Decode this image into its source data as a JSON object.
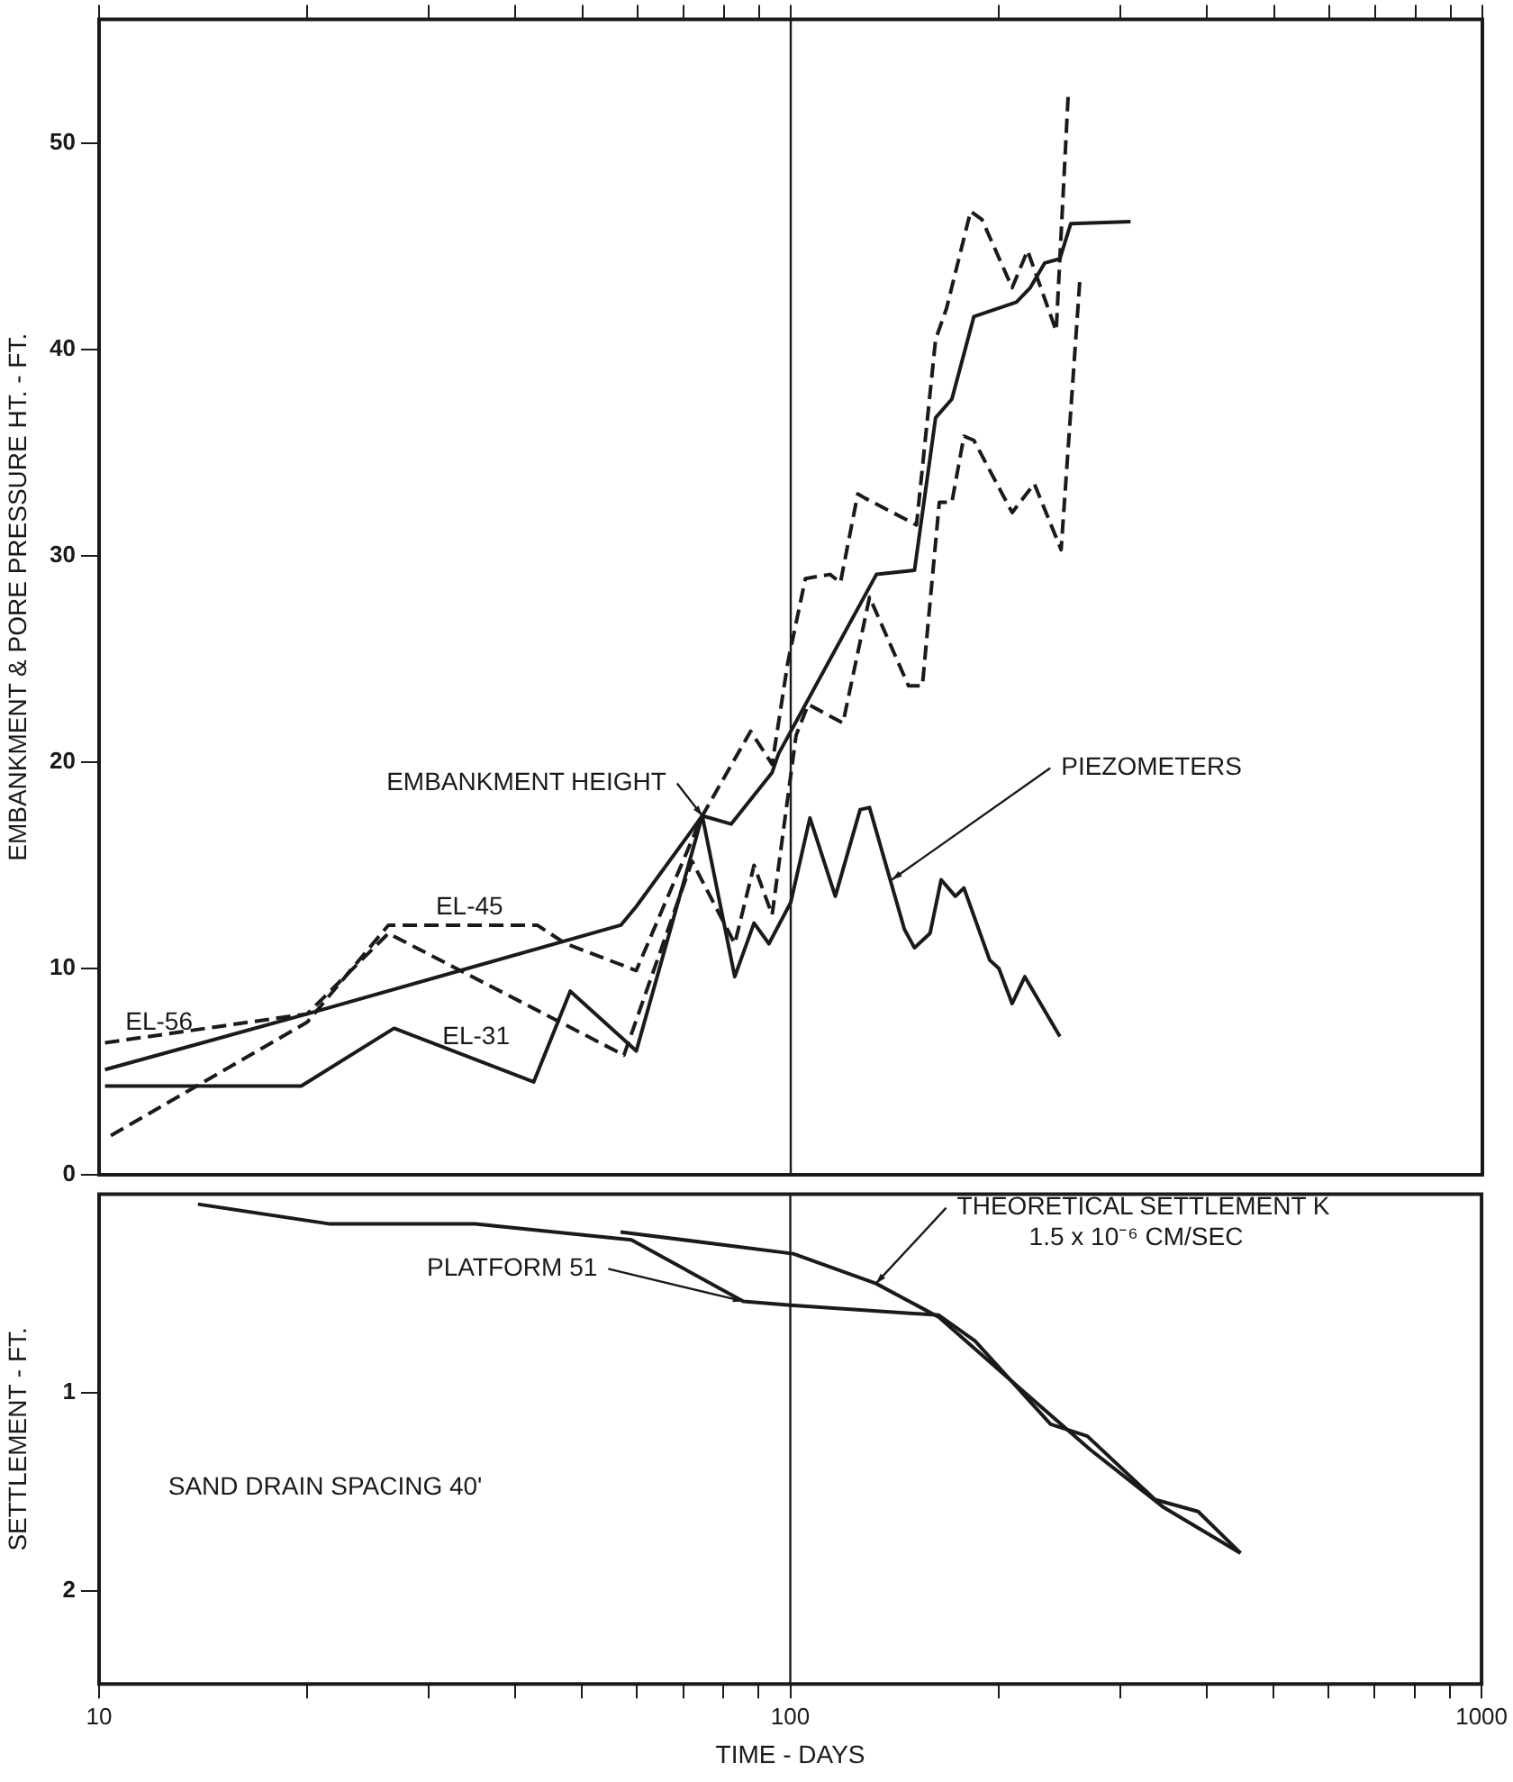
{
  "chart_data": [
    {
      "type": "line",
      "ylabel": "EMBANKMENT & PORE PRESSURE HT. - FT.",
      "log": "x",
      "xlim": [
        10,
        1000
      ],
      "xticks": [
        10,
        {
          "value": 20,
          "label": null
        },
        {
          "value": 30,
          "label": null
        },
        {
          "value": 40,
          "label": null
        },
        {
          "value": 50,
          "label": null
        },
        {
          "value": 60,
          "label": null
        },
        {
          "value": 70,
          "label": null
        },
        {
          "value": 80,
          "label": null
        },
        {
          "value": 90,
          "label": null
        },
        100,
        {
          "value": 200,
          "label": null
        },
        {
          "value": 300,
          "label": null
        },
        {
          "value": 400,
          "label": null
        },
        {
          "value": 500,
          "label": null
        },
        {
          "value": 600,
          "label": null
        },
        {
          "value": 700,
          "label": null
        },
        {
          "value": 800,
          "label": null
        },
        {
          "value": 900,
          "label": null
        },
        1000
      ],
      "ylim": [
        0,
        56
      ],
      "yticks": [
        0,
        10,
        20,
        30,
        40,
        50
      ],
      "tick_labels": "y",
      "grid": false,
      "marker": "none",
      "ref_lines": [
        {
          "axis": "x",
          "value": 100,
          "color": "#1a1a1a"
        }
      ],
      "annotations": [
        {
          "text": "PIEZOMETERS",
          "x": 140,
          "y": 14.3
        }
      ],
      "series": [
        {
          "name": "EMBANKMENT HEIGHT",
          "color": "#1a1a1a",
          "line_style": "solid",
          "x": [
            10.2,
            20,
            56.8,
            59.8,
            74.5,
            82,
            94,
            96,
            133,
            151,
            162,
            171,
            184,
            212,
            222,
            233,
            245,
            254,
            310
          ],
          "values": [
            5.1,
            7.8,
            12.1,
            13,
            17.4,
            17,
            19.5,
            20.4,
            29.1,
            29.3,
            36.7,
            37.6,
            41.6,
            42.3,
            43,
            44.2,
            44.4,
            46.1,
            46.2
          ]
        },
        {
          "name": "EL-56",
          "color": "#1a1a1a",
          "line_style": "dashed",
          "x": [
            10.2,
            20,
            26.2,
            57.4,
            72,
            83,
            88.5,
            94,
            101.8,
            106,
            119,
            130,
            148,
            155,
            164,
            171,
            178,
            184,
            209,
            225,
            246,
            262
          ],
          "values": [
            6.4,
            7.8,
            11.7,
            5.8,
            15.2,
            11.2,
            15,
            12.6,
            21.3,
            22.8,
            21.9,
            28,
            23.7,
            23.7,
            32.6,
            32.6,
            35.8,
            35.6,
            32.1,
            33.5,
            30.3,
            43.5
          ]
        },
        {
          "name": "EL-45",
          "color": "#1a1a1a",
          "line_style": "dashed",
          "x": [
            10.4,
            20,
            26.2,
            43,
            47.3,
            59.8,
            74.5,
            87.5,
            94,
            99,
            105,
            114,
            118,
            125,
            128,
            152,
            162,
            168,
            182,
            189,
            209,
            220,
            242,
            252
          ],
          "values": [
            1.9,
            7.4,
            12.1,
            12.1,
            11.2,
            9.9,
            17.4,
            21.5,
            19.9,
            24.8,
            28.9,
            29.1,
            28.7,
            33,
            32.8,
            31.5,
            40.5,
            42,
            46.7,
            46.3,
            43,
            44.8,
            40.9,
            52.5
          ]
        },
        {
          "name": "EL-31",
          "color": "#1a1a1a",
          "line_style": "solid",
          "x": [
            10.2,
            19.6,
            26.7,
            42.5,
            48,
            59.8,
            74.5,
            83,
            88.5,
            93,
            100,
            106.6,
            116,
            126,
            130,
            146,
            151,
            159,
            165,
            173,
            178,
            194,
            200,
            209,
            218,
            245
          ],
          "values": [
            4.3,
            4.3,
            7.1,
            4.5,
            8.9,
            6,
            17.4,
            9.6,
            12.2,
            11.2,
            13.2,
            17.3,
            13.5,
            17.7,
            17.8,
            11.9,
            11,
            11.7,
            14.3,
            13.5,
            13.9,
            10.4,
            10,
            8.3,
            9.6,
            6.7
          ]
        }
      ]
    },
    {
      "type": "line",
      "xlabel": "TIME - DAYS",
      "ylabel": "SETTLEMENT - FT.",
      "log": "x",
      "xlim": [
        10,
        1000
      ],
      "xticks": [
        10,
        {
          "value": 20,
          "label": null
        },
        {
          "value": 30,
          "label": null
        },
        {
          "value": 40,
          "label": null
        },
        {
          "value": 50,
          "label": null
        },
        {
          "value": 60,
          "label": null
        },
        {
          "value": 70,
          "label": null
        },
        {
          "value": 80,
          "label": null
        },
        {
          "value": 90,
          "label": null
        },
        100,
        {
          "value": 200,
          "label": null
        },
        {
          "value": 300,
          "label": null
        },
        {
          "value": 400,
          "label": null
        },
        {
          "value": 500,
          "label": null
        },
        {
          "value": 600,
          "label": null
        },
        {
          "value": 700,
          "label": null
        },
        {
          "value": 800,
          "label": null
        },
        {
          "value": 900,
          "label": null
        },
        1000
      ],
      "ylim": [
        2.47,
        0
      ],
      "yticks": [
        1,
        2
      ],
      "grid": false,
      "marker": "none",
      "ref_lines": [
        {
          "axis": "x",
          "value": 100,
          "color": "#1a1a1a"
        }
      ],
      "annotations": [
        "SAND DRAIN SPACING 40'"
      ],
      "series": [
        {
          "name": "PLATFORM 51",
          "color": "#1a1a1a",
          "line_style": "solid",
          "x": [
            13.9,
            21.6,
            35,
            58.9,
            85.5,
            100,
            164,
            185,
            238,
            269,
            337,
            389,
            448
          ],
          "values": [
            0.05,
            0.15,
            0.15,
            0.23,
            0.54,
            0.56,
            0.61,
            0.74,
            1.16,
            1.22,
            1.54,
            1.6,
            1.81
          ]
        },
        {
          "name": "THEORETICAL SETTLEMENT K 1.5 x 10⁻⁶ CM/SEC",
          "color": "#1a1a1a",
          "line_style": "solid",
          "x": [
            56.8,
            101,
            133,
            164,
            215,
            272,
            347,
            448
          ],
          "values": [
            0.19,
            0.3,
            0.45,
            0.62,
            0.98,
            1.29,
            1.58,
            1.81
          ]
        }
      ]
    }
  ]
}
